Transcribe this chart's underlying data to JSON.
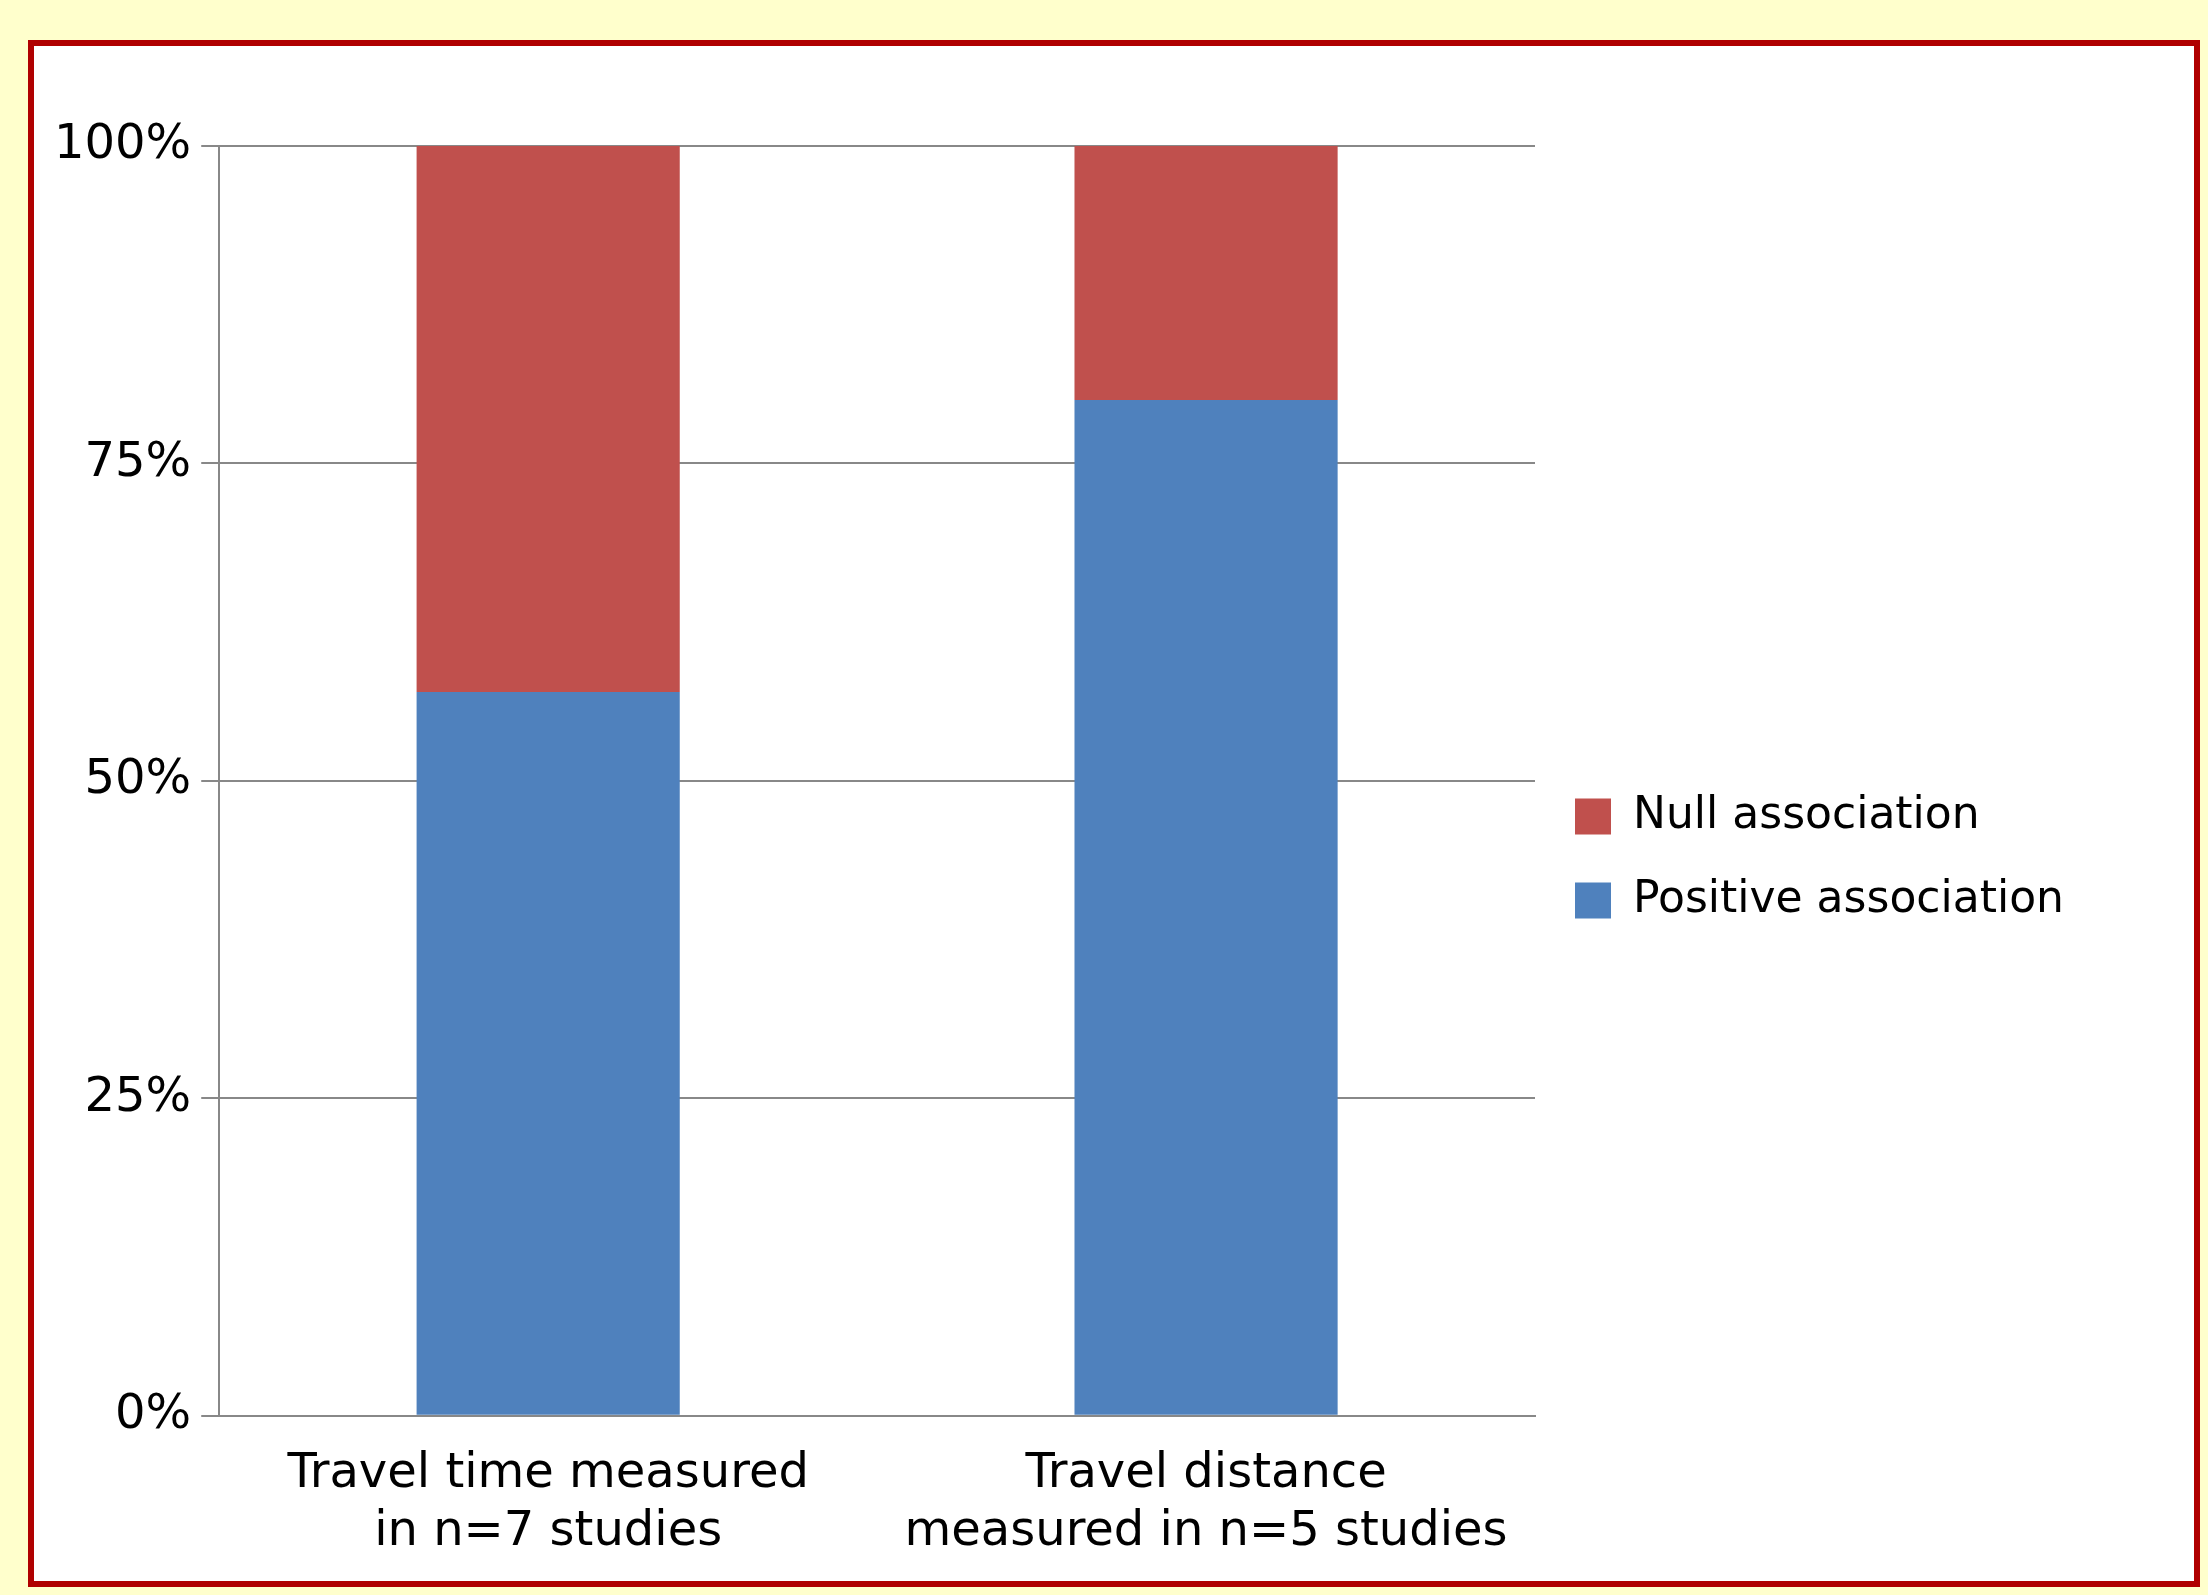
{
  "chart_data": {
    "type": "bar",
    "categories": [
      "Travel time measured in n=7 studies",
      "Travel distance measured in n=5 studies"
    ],
    "series": [
      {
        "name": "Positive association",
        "color": "#4f81bd",
        "values": [
          57,
          80
        ]
      },
      {
        "name": "Null association",
        "color": "#c0504d",
        "values": [
          43,
          20
        ]
      }
    ],
    "stacked": true,
    "ylim": [
      0,
      100
    ],
    "yticks": [
      {
        "value": 0,
        "label": "0%"
      },
      {
        "value": 25,
        "label": "25%"
      },
      {
        "value": 50,
        "label": "50%"
      },
      {
        "value": 75,
        "label": "75%"
      },
      {
        "value": 100,
        "label": "100%"
      }
    ],
    "grid": "y",
    "legend": "right"
  }
}
